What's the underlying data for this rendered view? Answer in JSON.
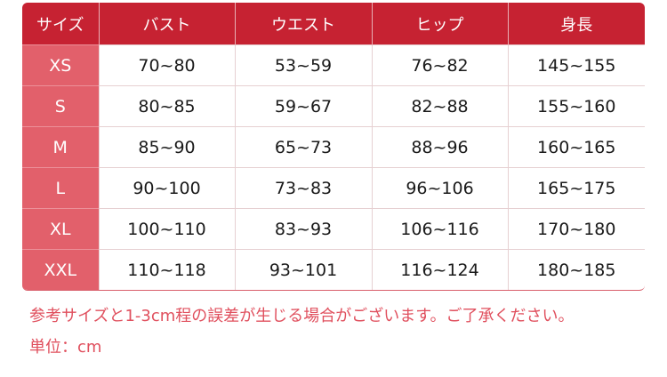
{
  "colors": {
    "header": "#c62232",
    "size_column": "#e2606b",
    "note": "#e0505e"
  },
  "table": {
    "headers": [
      "サイズ",
      "バスト",
      "ウエスト",
      "ヒップ",
      "身長"
    ],
    "rows": [
      [
        "XS",
        "70~80",
        "53~59",
        "76~82",
        "145~155"
      ],
      [
        "S",
        "80~85",
        "59~67",
        "82~88",
        "155~160"
      ],
      [
        "M",
        "85~90",
        "65~73",
        "88~96",
        "160~165"
      ],
      [
        "L",
        "90~100",
        "73~83",
        "96~106",
        "165~175"
      ],
      [
        "XL",
        "100~110",
        "83~93",
        "106~116",
        "170~180"
      ],
      [
        "XXL",
        "110~118",
        "93~101",
        "116~124",
        "180~185"
      ]
    ]
  },
  "notes": {
    "disclaimer": "参考サイズと1-3cm程の誤差が生じる場合がございます。ご了承ください。",
    "unit": "単位：cm"
  }
}
